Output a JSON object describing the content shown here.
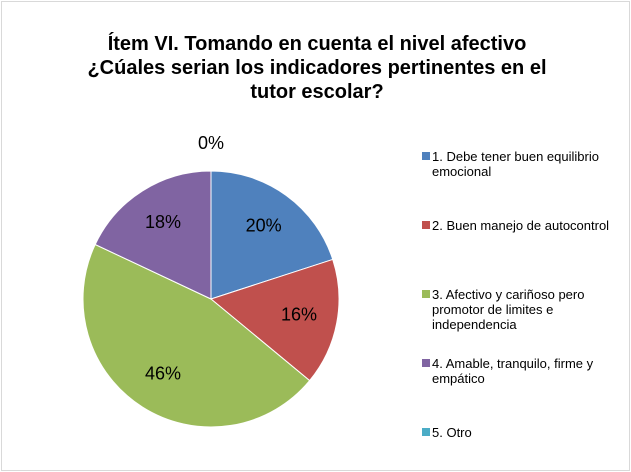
{
  "chart_data": {
    "type": "pie",
    "title": "Ítem VI. Tomando en cuenta el nivel afectivo ¿Cúales serian los indicadores pertinentes en el tutor escolar?",
    "categories": [
      "1. Debe tener buen equilibrio emocional",
      "2. Buen manejo de autocontrol",
      "3. Afectivo y cariñoso pero promotor de limites e independencia",
      "4. Amable, tranquilo, firme y empático",
      "5. Otro"
    ],
    "values": [
      20,
      16,
      46,
      18,
      0
    ],
    "value_labels": [
      "20%",
      "16%",
      "46%",
      "18%",
      "0%"
    ],
    "colors": [
      "#4f81bd",
      "#c0504d",
      "#9bbb59",
      "#8064a2",
      "#4bacc6"
    ],
    "legend": "right"
  }
}
